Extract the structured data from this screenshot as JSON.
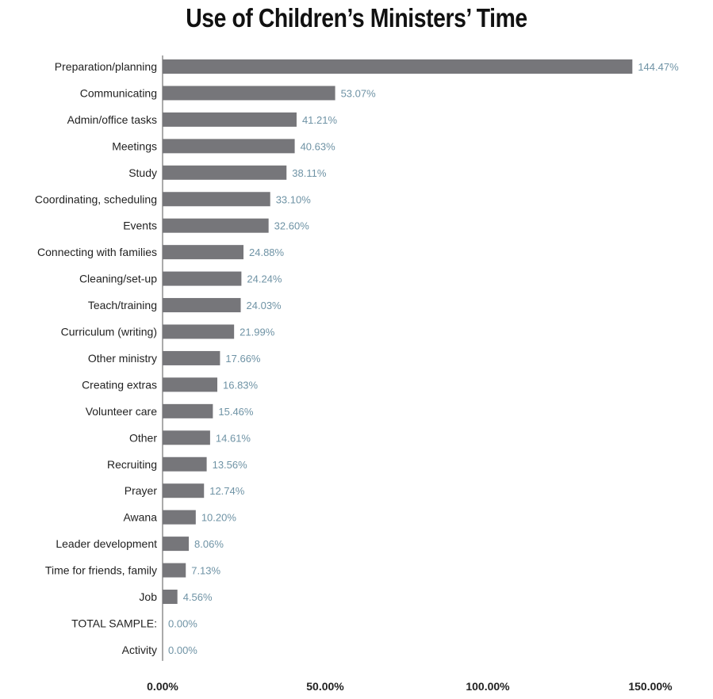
{
  "chart_data": {
    "type": "bar",
    "orientation": "horizontal",
    "title": "Use of Children’s Ministers’ Time",
    "categories": [
      "Preparation/planning",
      "Communicating",
      "Admin/office tasks",
      "Meetings",
      "Study",
      "Coordinating, scheduling",
      "Events",
      "Connecting with families",
      "Cleaning/set-up",
      "Teach/training",
      "Curriculum (writing)",
      "Other ministry",
      "Creating extras",
      "Volunteer care",
      "Other",
      "Recruiting",
      "Prayer",
      "Awana",
      "Leader development",
      "Time for friends, family",
      "Job",
      "TOTAL SAMPLE:",
      "Activity"
    ],
    "values": [
      144.47,
      53.07,
      41.21,
      40.63,
      38.11,
      33.1,
      32.6,
      24.88,
      24.24,
      24.03,
      21.99,
      17.66,
      16.83,
      15.46,
      14.61,
      13.56,
      12.74,
      10.2,
      8.06,
      7.13,
      4.56,
      0.0,
      0.0
    ],
    "value_labels": [
      "144.47%",
      "53.07%",
      "41.21%",
      "40.63%",
      "38.11%",
      "33.10%",
      "32.60%",
      "24.88%",
      "24.24%",
      "24.03%",
      "21.99%",
      "17.66%",
      "16.83%",
      "15.46%",
      "14.61%",
      "13.56%",
      "12.74%",
      "10.20%",
      "8.06%",
      "7.13%",
      "4.56%",
      "0.00%",
      "0.00%"
    ],
    "xlim": [
      0,
      150
    ],
    "x_ticks": [
      0,
      50,
      100,
      150
    ],
    "x_tick_labels": [
      "0.00%",
      "50.00%",
      "100.00%",
      "150.00%"
    ],
    "bar_color": "#76767a",
    "value_label_color": "#6f93a5",
    "grid": false,
    "legend": "none"
  }
}
